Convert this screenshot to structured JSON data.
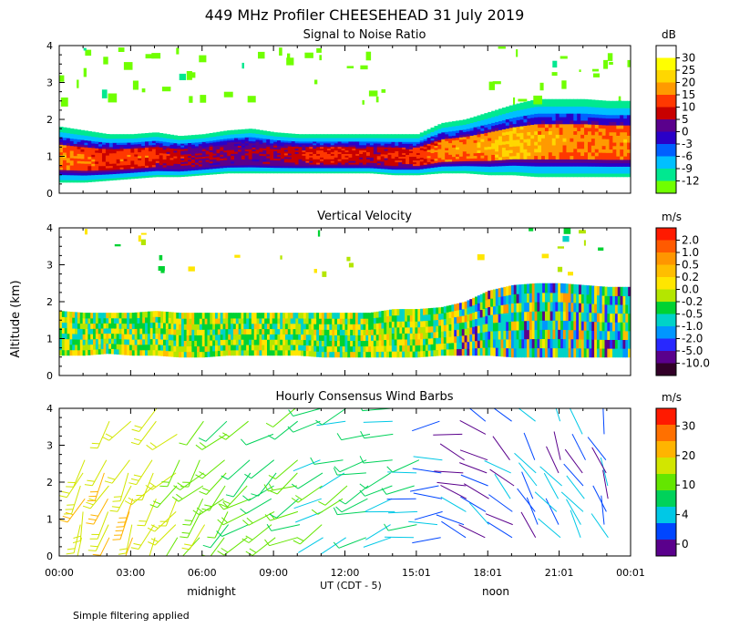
{
  "title": "449 MHz Profiler CHEESEHEAD 31 July 2019",
  "y_axis_label": "Altitude (km)",
  "x_axis_label": "UT  (CDT - 5)",
  "footer_note": "Simple filtering applied",
  "x_ticks": [
    "00:00",
    "03:00",
    "06:00",
    "09:00",
    "12:00",
    "15:01",
    "18:01",
    "21:01",
    "00:01"
  ],
  "local_time_labels": {
    "midnight": "midnight",
    "noon": "noon"
  },
  "chart_data": [
    {
      "type": "heatmap",
      "title": "Signal to Noise Ratio",
      "unit": "dB",
      "xlabel": "UT  (CDT - 5)",
      "ylabel": "Altitude (km)",
      "xlim": [
        0,
        24
      ],
      "ylim": [
        0,
        4
      ],
      "y_ticks": [
        "0",
        "1",
        "2",
        "3",
        "4"
      ],
      "colorbar": {
        "labels": [
          "30",
          "25",
          "20",
          "15",
          "10",
          "5",
          "0",
          "-3",
          "-6",
          "-9",
          "-12"
        ],
        "colors": [
          "#ffffff",
          "#ffff00",
          "#ffd700",
          "#ff9a00",
          "#ff3800",
          "#c80000",
          "#5a008c",
          "#2a00c8",
          "#0060ff",
          "#00c0ff",
          "#00e890",
          "#70ff00"
        ]
      },
      "layer": {
        "base_km": [
          0.3,
          0.3,
          0.35,
          0.4,
          0.45,
          0.45,
          0.5,
          0.55,
          0.55,
          0.55,
          0.55,
          0.55,
          0.55,
          0.55,
          0.5,
          0.5,
          0.55,
          0.55,
          0.5,
          0.5,
          0.45,
          0.45,
          0.45,
          0.45
        ],
        "top_km": [
          1.8,
          1.7,
          1.6,
          1.6,
          1.65,
          1.55,
          1.6,
          1.7,
          1.75,
          1.65,
          1.6,
          1.6,
          1.6,
          1.6,
          1.6,
          1.6,
          1.9,
          2.0,
          2.2,
          2.4,
          2.55,
          2.55,
          2.55,
          2.5
        ],
        "peak_snr_db": [
          18,
          15,
          12,
          14,
          11,
          8,
          6,
          5,
          5,
          7,
          9,
          12,
          11,
          8,
          10,
          12,
          17,
          18,
          20,
          22,
          20,
          18,
          18,
          17
        ]
      }
    },
    {
      "type": "heatmap",
      "title": "Vertical Velocity",
      "unit": "m/s",
      "xlabel": "UT  (CDT - 5)",
      "ylabel": "Altitude (km)",
      "xlim": [
        0,
        24
      ],
      "ylim": [
        0,
        4
      ],
      "y_ticks": [
        "0",
        "1",
        "2",
        "3",
        "4"
      ],
      "colorbar": {
        "labels": [
          "2.0",
          "1.0",
          "0.5",
          "0.2",
          "0.0",
          "-0.2",
          "-0.5",
          "-1.0",
          "-2.0",
          "-5.0",
          "-10.0"
        ],
        "colors": [
          "#ff1a00",
          "#ff5a00",
          "#ff9600",
          "#ffbe00",
          "#ffe600",
          "#b4e600",
          "#00d232",
          "#00d2c8",
          "#0096ff",
          "#2828ff",
          "#5a008c",
          "#320028"
        ]
      },
      "layer": {
        "base_km": [
          0.55,
          0.55,
          0.6,
          0.55,
          0.55,
          0.5,
          0.5,
          0.55,
          0.55,
          0.55,
          0.55,
          0.5,
          0.5,
          0.5,
          0.5,
          0.5,
          0.55,
          0.55,
          0.55,
          0.5,
          0.5,
          0.5,
          0.5,
          0.5
        ],
        "top_km": [
          1.75,
          1.7,
          1.7,
          1.7,
          1.75,
          1.7,
          1.7,
          1.7,
          1.7,
          1.7,
          1.7,
          1.7,
          1.7,
          1.7,
          1.8,
          1.8,
          1.85,
          2.0,
          2.3,
          2.45,
          2.5,
          2.5,
          2.45,
          2.4
        ]
      }
    },
    {
      "type": "wind_barbs",
      "title": "Hourly Consensus Wind Barbs",
      "unit": "m/s",
      "xlabel": "UT  (CDT - 5)",
      "ylabel": "Altitude (km)",
      "xlim": [
        0,
        24
      ],
      "ylim": [
        0,
        4
      ],
      "y_ticks": [
        "0",
        "1",
        "2",
        "3",
        "4"
      ],
      "colorbar": {
        "labels": [
          "30",
          "20",
          "10",
          "4",
          "0"
        ],
        "colors": [
          "#ff1a00",
          "#ff7000",
          "#ffb400",
          "#d2e600",
          "#64e600",
          "#00d25a",
          "#00c8e6",
          "#0046ff",
          "#5a008c"
        ]
      },
      "speed_ms_by_hour": [
        14,
        13,
        13,
        12,
        12,
        10,
        9,
        8,
        7,
        7,
        7,
        6,
        6,
        5,
        5,
        4,
        3,
        2,
        2,
        2,
        2,
        2,
        3,
        3
      ],
      "direction_deg_by_hour": [
        200,
        205,
        210,
        210,
        215,
        220,
        220,
        225,
        230,
        235,
        240,
        240,
        245,
        250,
        255,
        260,
        270,
        285,
        300,
        310,
        320,
        330,
        330,
        340
      ]
    }
  ]
}
